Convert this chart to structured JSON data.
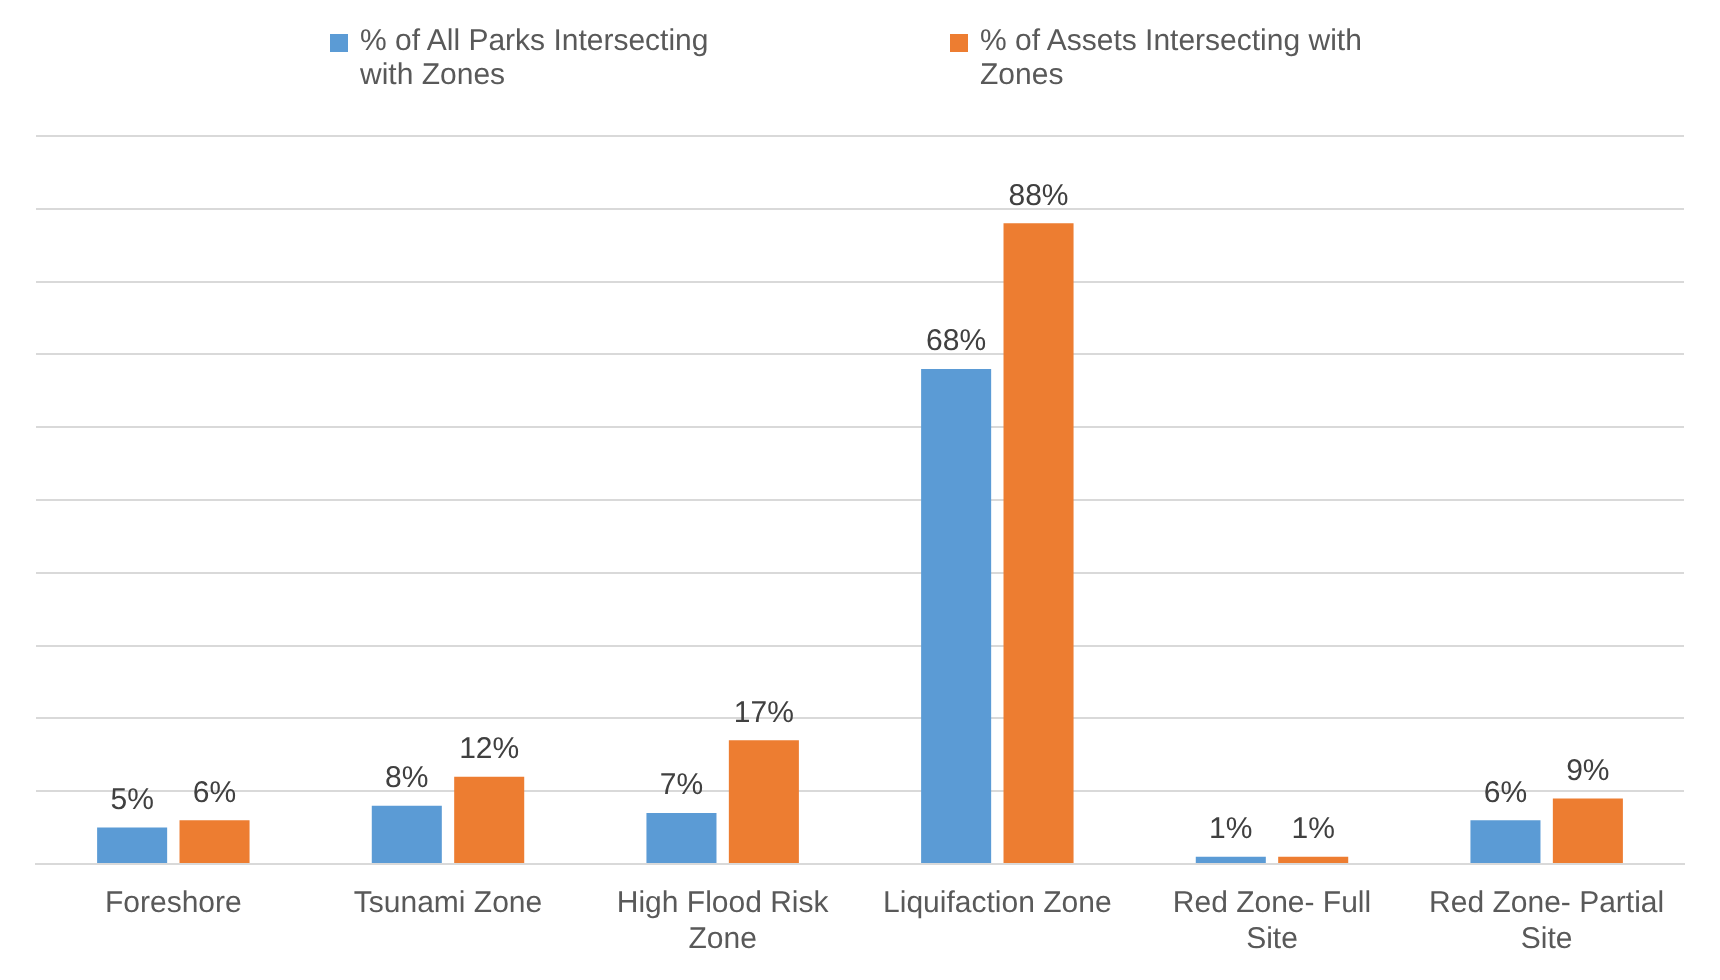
{
  "chart_data": {
    "type": "bar",
    "categories": [
      "Foreshore",
      "Tsunami Zone",
      "High Flood Risk Zone",
      "Liquifaction Zone",
      "Red Zone- Full Site",
      "Red Zone- Partial Site"
    ],
    "series": [
      {
        "name": "% of All Parks Intersecting with Zones",
        "color": "#5b9bd5",
        "values": [
          5,
          8,
          7,
          68,
          1,
          6
        ],
        "value_labels": [
          "5%",
          "8%",
          "7%",
          "68%",
          "1%",
          "6%"
        ]
      },
      {
        "name": "% of Assets Intersecting with Zones",
        "color": "#ed7d31",
        "values": [
          6,
          12,
          17,
          88,
          1,
          9
        ],
        "value_labels": [
          "6%",
          "12%",
          "17%",
          "88%",
          "1%",
          "9%"
        ]
      }
    ],
    "ylim": [
      0,
      100
    ],
    "yticks": [
      {
        "value": 0,
        "label": null
      },
      {
        "value": 10,
        "label": null
      },
      {
        "value": 20,
        "label": null
      },
      {
        "value": 30,
        "label": null
      },
      {
        "value": 40,
        "label": null
      },
      {
        "value": 50,
        "label": null
      },
      {
        "value": 60,
        "label": null
      },
      {
        "value": 70,
        "label": null
      },
      {
        "value": 80,
        "label": null
      },
      {
        "value": 90,
        "label": null
      },
      {
        "value": 100,
        "label": null
      }
    ],
    "grid": "y",
    "legend": "top",
    "tick_labels": "x"
  }
}
